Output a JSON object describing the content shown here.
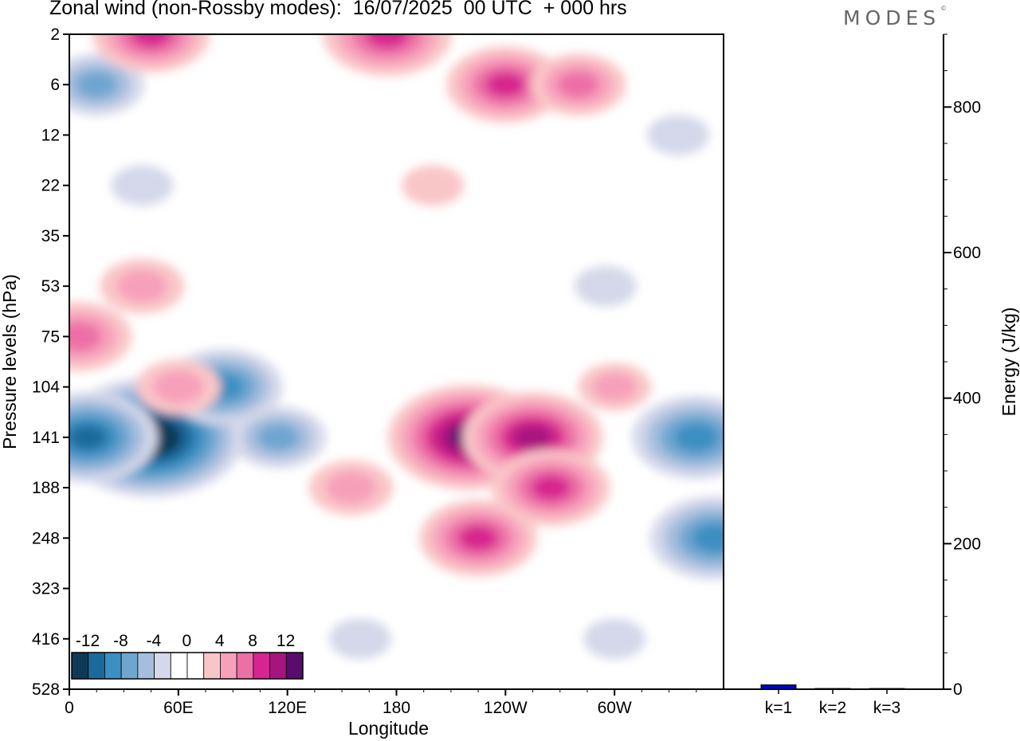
{
  "title": "Zonal wind (non-Rossby modes):  16/07/2025  00 UTC  + 000 hrs",
  "logo": "MODES",
  "logo_mark": "©",
  "chart_data": [
    {
      "type": "heatmap",
      "title": "Zonal wind (non-Rossby modes):  16/07/2025  00 UTC  + 000 hrs",
      "xlabel": "Longitude",
      "ylabel": "Pressure levels (hPa)",
      "x_ticks": [
        "0",
        "60E",
        "120E",
        "180",
        "120W",
        "60W"
      ],
      "y_ticks": [
        "2",
        "6",
        "12",
        "22",
        "35",
        "53",
        "75",
        "104",
        "141",
        "188",
        "248",
        "323",
        "416",
        "528"
      ],
      "colorbar_labels": [
        "-12",
        "-8",
        "-4",
        "0",
        "4",
        "8",
        "12"
      ],
      "colorbar_colors": [
        "#0e3a57",
        "#1a6a9c",
        "#3b8fc1",
        "#6ea6d0",
        "#a6bedd",
        "#d5d8ea",
        "#ffffff",
        "#ffffff",
        "#f9c6c8",
        "#f7a0bb",
        "#ec6fa6",
        "#d7258f",
        "#a8147f",
        "#5b0a6e"
      ],
      "features": [
        {
          "lon": 45,
          "level": "141",
          "value": -14
        },
        {
          "lon": 10,
          "level": "141",
          "value": -10
        },
        {
          "lon": 85,
          "level": "104",
          "value": -8
        },
        {
          "lon": 115,
          "level": "141",
          "value": -6
        },
        {
          "lon": 15,
          "level": "6",
          "value": -6
        },
        {
          "lon": 40,
          "level": "22",
          "value": -3
        },
        {
          "lon": 345,
          "level": "141",
          "value": -9
        },
        {
          "lon": 355,
          "level": "248",
          "value": -9
        },
        {
          "lon": 295,
          "level": "53",
          "value": -3
        },
        {
          "lon": 335,
          "level": "12",
          "value": -3
        },
        {
          "lon": 220,
          "level": "141",
          "value": 12
        },
        {
          "lon": 255,
          "level": "141",
          "value": 10
        },
        {
          "lon": 225,
          "level": "248",
          "value": 8
        },
        {
          "lon": 265,
          "level": "188",
          "value": 8
        },
        {
          "lon": 155,
          "level": "188",
          "value": 5
        },
        {
          "lon": 5,
          "level": "75",
          "value": 7
        },
        {
          "lon": 40,
          "level": "53",
          "value": 5
        },
        {
          "lon": 60,
          "level": "104",
          "value": 5
        },
        {
          "lon": 175,
          "level": "2",
          "value": 9
        },
        {
          "lon": 45,
          "level": "2",
          "value": 8
        },
        {
          "lon": 240,
          "level": "6",
          "value": 8
        },
        {
          "lon": 280,
          "level": "6",
          "value": 6
        },
        {
          "lon": 200,
          "level": "22",
          "value": 3
        },
        {
          "lon": 300,
          "level": "104",
          "value": 4
        },
        {
          "lon": 160,
          "level": "416",
          "value": -3
        },
        {
          "lon": 300,
          "level": "416",
          "value": -3
        }
      ]
    },
    {
      "type": "bar",
      "categories": [
        "k=1",
        "k=2",
        "k=3"
      ],
      "values": [
        6,
        1,
        1
      ],
      "ylabel": "Energy (J/kg)",
      "ylim": [
        0,
        900
      ],
      "y_ticks": [
        0,
        200,
        400,
        600,
        800
      ],
      "bar_color": "#0000cc"
    }
  ]
}
